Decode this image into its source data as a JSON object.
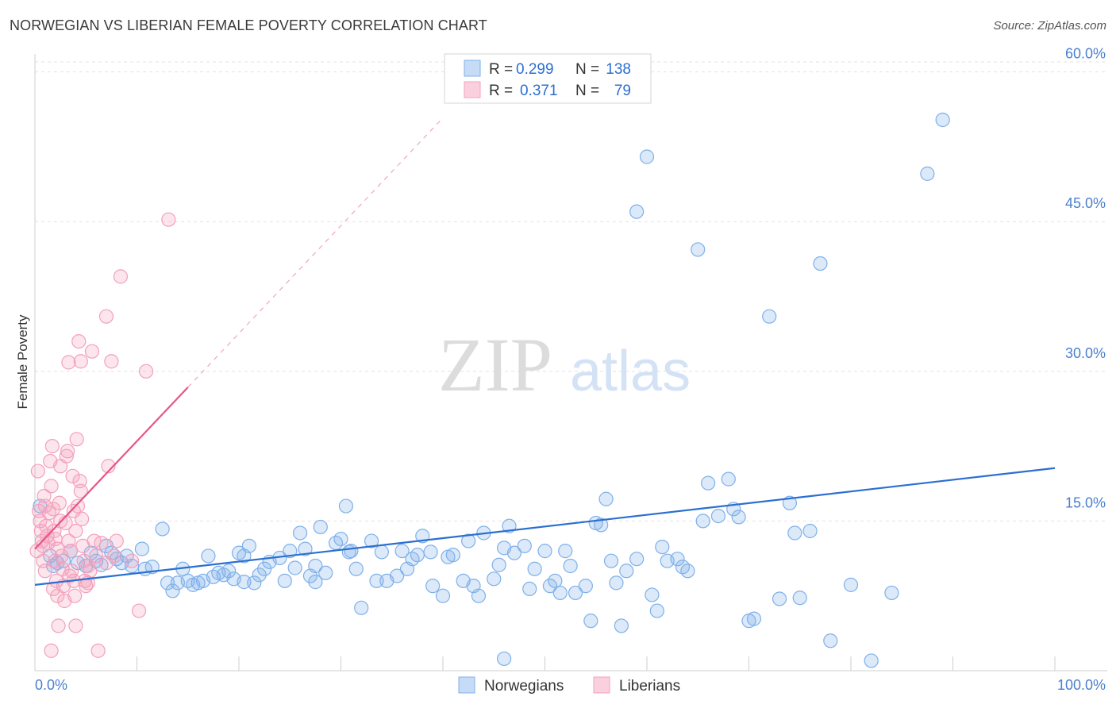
{
  "header": {
    "title": "NORWEGIAN VS LIBERIAN FEMALE POVERTY CORRELATION CHART",
    "source": "Source: ZipAtlas.com"
  },
  "watermark": {
    "zip": "ZIP",
    "atlas": "atlas"
  },
  "legend": {
    "rows": [
      {
        "r_label": "R =",
        "r_value": "0.299",
        "n_label": "N =",
        "n_value": "138",
        "color": "#7fb0ea"
      },
      {
        "r_label": "R =",
        "r_value": "0.371",
        "n_label": "N =",
        "n_value": "79",
        "color": "#f4a0bc"
      }
    ]
  },
  "bottom_legend": [
    {
      "label": "Norwegians",
      "color": "#7fb0ea"
    },
    {
      "label": "Liberians",
      "color": "#f4a0bc"
    }
  ],
  "chart_data": {
    "type": "scatter",
    "title": "NORWEGIAN VS LIBERIAN FEMALE POVERTY CORRELATION CHART",
    "xlabel": "",
    "ylabel": "Female Poverty",
    "xlim": [
      0,
      100
    ],
    "ylim": [
      0,
      61.8
    ],
    "x_tick_labels": [
      "0.0%",
      "100.0%"
    ],
    "y_ticks": [
      15,
      30,
      45,
      60
    ],
    "y_tick_labels": [
      "15.0%",
      "30.0%",
      "45.0%",
      "60.0%"
    ],
    "grid": true,
    "legend_position": "top-center",
    "series": [
      {
        "name": "Norwegians",
        "color": "#7fb0ea",
        "line_color": "#2b6fd0",
        "trend": {
          "x": [
            0,
            100
          ],
          "y": [
            8.6,
            20.3
          ]
        },
        "points": [
          [
            0.5,
            16.5
          ],
          [
            1.5,
            11.5
          ],
          [
            1.8,
            10.5
          ],
          [
            2.2,
            10.8
          ],
          [
            2.8,
            11.0
          ],
          [
            3.5,
            12.0
          ],
          [
            4.2,
            10.8
          ],
          [
            5.0,
            10.5
          ],
          [
            5.5,
            11.8
          ],
          [
            6.0,
            11.0
          ],
          [
            6.5,
            10.6
          ],
          [
            7.0,
            12.5
          ],
          [
            7.5,
            11.8
          ],
          [
            8.0,
            11.2
          ],
          [
            8.5,
            10.8
          ],
          [
            9.0,
            11.5
          ],
          [
            9.5,
            10.5
          ],
          [
            10.5,
            12.2
          ],
          [
            11.5,
            10.4
          ],
          [
            12.5,
            14.2
          ],
          [
            13.0,
            8.8
          ],
          [
            13.5,
            8.0
          ],
          [
            14.0,
            8.8
          ],
          [
            14.5,
            10.2
          ],
          [
            15.0,
            9.0
          ],
          [
            15.5,
            8.6
          ],
          [
            16.0,
            8.8
          ],
          [
            16.5,
            9.0
          ],
          [
            17.0,
            11.5
          ],
          [
            17.5,
            9.4
          ],
          [
            18.0,
            9.8
          ],
          [
            18.5,
            9.6
          ],
          [
            19.0,
            10.0
          ],
          [
            19.5,
            9.2
          ],
          [
            20.0,
            11.8
          ],
          [
            20.5,
            11.5
          ],
          [
            21.0,
            12.5
          ],
          [
            21.5,
            8.8
          ],
          [
            22.0,
            9.6
          ],
          [
            22.5,
            10.2
          ],
          [
            23.0,
            10.9
          ],
          [
            24.0,
            11.3
          ],
          [
            24.5,
            9.0
          ],
          [
            25.0,
            12.0
          ],
          [
            25.5,
            10.3
          ],
          [
            26.0,
            13.8
          ],
          [
            26.5,
            12.2
          ],
          [
            27.0,
            9.5
          ],
          [
            27.5,
            10.5
          ],
          [
            28.0,
            14.4
          ],
          [
            28.5,
            9.8
          ],
          [
            29.5,
            12.8
          ],
          [
            30.0,
            13.2
          ],
          [
            30.5,
            16.5
          ],
          [
            31.0,
            12.0
          ],
          [
            31.5,
            10.2
          ],
          [
            32.0,
            6.3
          ],
          [
            33.0,
            13.0
          ],
          [
            33.5,
            9.0
          ],
          [
            34.0,
            11.9
          ],
          [
            34.5,
            9.0
          ],
          [
            35.5,
            9.5
          ],
          [
            36.0,
            12.0
          ],
          [
            36.5,
            10.2
          ],
          [
            37.0,
            11.2
          ],
          [
            37.5,
            11.6
          ],
          [
            38.0,
            13.5
          ],
          [
            39.0,
            8.5
          ],
          [
            40.0,
            7.5
          ],
          [
            40.5,
            11.4
          ],
          [
            41.0,
            11.6
          ],
          [
            42.0,
            9.0
          ],
          [
            42.5,
            13.0
          ],
          [
            43.0,
            8.5
          ],
          [
            43.5,
            7.5
          ],
          [
            44.0,
            13.8
          ],
          [
            45.0,
            9.2
          ],
          [
            45.5,
            10.6
          ],
          [
            46.0,
            12.3
          ],
          [
            47.0,
            11.8
          ],
          [
            48.0,
            12.5
          ],
          [
            48.5,
            8.2
          ],
          [
            49.0,
            10.2
          ],
          [
            50.0,
            12.0
          ],
          [
            50.5,
            8.5
          ],
          [
            51.0,
            9.0
          ],
          [
            51.5,
            7.8
          ],
          [
            52.0,
            12.0
          ],
          [
            52.5,
            10.5
          ],
          [
            53.0,
            7.8
          ],
          [
            54.0,
            8.5
          ],
          [
            55.0,
            14.8
          ],
          [
            55.5,
            14.6
          ],
          [
            56.0,
            17.2
          ],
          [
            56.5,
            11.0
          ],
          [
            57.0,
            8.8
          ],
          [
            57.5,
            4.5
          ],
          [
            58.0,
            10.0
          ],
          [
            59.0,
            11.2
          ],
          [
            60.0,
            51.5
          ],
          [
            60.5,
            7.6
          ],
          [
            61.0,
            6.0
          ],
          [
            61.5,
            12.4
          ],
          [
            62.0,
            11.0
          ],
          [
            63.0,
            11.2
          ],
          [
            63.5,
            10.4
          ],
          [
            64.0,
            10.0
          ],
          [
            65.0,
            42.2
          ],
          [
            65.5,
            15.0
          ],
          [
            66.0,
            18.8
          ],
          [
            67.0,
            15.5
          ],
          [
            68.0,
            19.2
          ],
          [
            68.5,
            16.2
          ],
          [
            69.0,
            15.4
          ],
          [
            70.0,
            5.0
          ],
          [
            70.5,
            5.2
          ],
          [
            72.0,
            35.5
          ],
          [
            73.0,
            7.2
          ],
          [
            74.0,
            16.8
          ],
          [
            74.5,
            13.8
          ],
          [
            75.0,
            7.3
          ],
          [
            76.0,
            14.0
          ],
          [
            77.0,
            40.8
          ],
          [
            78.0,
            3.0
          ],
          [
            80.0,
            8.6
          ],
          [
            82.0,
            1.0
          ],
          [
            84.0,
            7.8
          ],
          [
            87.5,
            49.8
          ],
          [
            89.0,
            55.2
          ],
          [
            46.0,
            1.2
          ],
          [
            59.0,
            46.0
          ],
          [
            54.5,
            5.0
          ],
          [
            27.5,
            8.9
          ],
          [
            46.5,
            14.5
          ],
          [
            30.8,
            11.9
          ],
          [
            20.5,
            8.9
          ],
          [
            10.8,
            10.2
          ],
          [
            38.8,
            11.9
          ]
        ]
      },
      {
        "name": "Liberians",
        "color": "#f4a0bc",
        "line_color": "#e8558a",
        "trend": {
          "x": [
            0,
            15
          ],
          "y": [
            12.2,
            28.4
          ]
        },
        "trend_dashed": {
          "x": [
            15,
            40
          ],
          "y": [
            28.4,
            55.4
          ]
        },
        "points": [
          [
            0.3,
            20.0
          ],
          [
            0.4,
            16.0
          ],
          [
            0.5,
            15.0
          ],
          [
            0.6,
            14.0
          ],
          [
            0.7,
            13.0
          ],
          [
            0.8,
            12.5
          ],
          [
            0.9,
            17.5
          ],
          [
            1.0,
            16.5
          ],
          [
            1.1,
            14.5
          ],
          [
            1.2,
            13.5
          ],
          [
            1.3,
            12.8
          ],
          [
            1.4,
            15.8
          ],
          [
            1.5,
            21.0
          ],
          [
            1.6,
            18.5
          ],
          [
            1.7,
            22.5
          ],
          [
            1.8,
            16.2
          ],
          [
            1.9,
            14.0
          ],
          [
            2.0,
            13.2
          ],
          [
            2.1,
            9.0
          ],
          [
            2.2,
            7.5
          ],
          [
            2.3,
            4.5
          ],
          [
            2.4,
            16.8
          ],
          [
            2.5,
            15.0
          ],
          [
            2.6,
            11.5
          ],
          [
            2.7,
            10.2
          ],
          [
            2.8,
            8.5
          ],
          [
            2.9,
            7.0
          ],
          [
            3.0,
            14.8
          ],
          [
            3.1,
            21.5
          ],
          [
            3.2,
            22.0
          ],
          [
            3.3,
            13.0
          ],
          [
            3.4,
            9.5
          ],
          [
            3.5,
            12.0
          ],
          [
            3.6,
            10.0
          ],
          [
            3.7,
            19.5
          ],
          [
            3.8,
            9.0
          ],
          [
            3.9,
            7.5
          ],
          [
            4.0,
            4.5
          ],
          [
            4.1,
            23.2
          ],
          [
            4.2,
            16.5
          ],
          [
            4.3,
            33.0
          ],
          [
            4.4,
            19.0
          ],
          [
            4.5,
            18.0
          ],
          [
            4.6,
            15.2
          ],
          [
            4.7,
            12.5
          ],
          [
            4.8,
            11.0
          ],
          [
            4.9,
            9.0
          ],
          [
            5.0,
            8.5
          ],
          [
            5.2,
            10.5
          ],
          [
            5.4,
            10.0
          ],
          [
            5.6,
            32.0
          ],
          [
            5.8,
            13.0
          ],
          [
            6.0,
            11.5
          ],
          [
            6.2,
            2.0
          ],
          [
            7.0,
            35.5
          ],
          [
            7.2,
            20.5
          ],
          [
            7.5,
            31.0
          ],
          [
            7.8,
            11.5
          ],
          [
            8.0,
            13.0
          ],
          [
            8.4,
            39.5
          ],
          [
            9.5,
            11.0
          ],
          [
            10.2,
            6.0
          ],
          [
            10.9,
            30.0
          ],
          [
            13.1,
            45.2
          ],
          [
            4.5,
            31.0
          ],
          [
            1.6,
            2.0
          ],
          [
            3.3,
            30.9
          ],
          [
            2.0,
            11.0
          ],
          [
            1.0,
            10.0
          ],
          [
            0.2,
            12.0
          ],
          [
            2.5,
            20.5
          ],
          [
            3.8,
            16.0
          ],
          [
            5.2,
            8.8
          ],
          [
            6.5,
            12.8
          ],
          [
            1.8,
            8.2
          ],
          [
            0.8,
            11.0
          ],
          [
            4.0,
            14.0
          ],
          [
            2.2,
            12.2
          ],
          [
            7.0,
            10.8
          ]
        ]
      }
    ]
  }
}
